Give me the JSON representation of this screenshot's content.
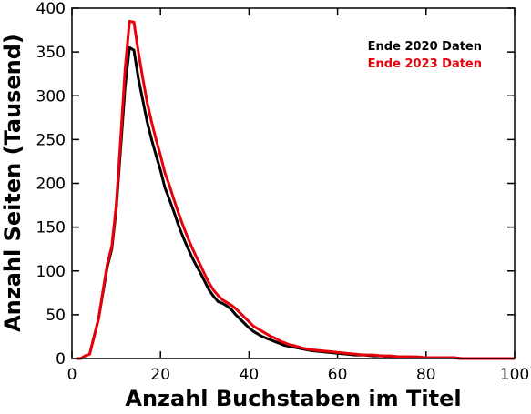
{
  "chart_data": {
    "type": "line",
    "xlabel": "Anzahl Buchstaben im Titel",
    "ylabel": "Anzahl Seiten (Tausend)",
    "x": [
      1,
      2,
      3,
      4,
      5,
      6,
      7,
      8,
      9,
      10,
      11,
      12,
      13,
      14,
      15,
      16,
      17,
      18,
      19,
      20,
      21,
      22,
      23,
      24,
      25,
      26,
      27,
      28,
      29,
      30,
      31,
      32,
      33,
      34,
      35,
      36,
      37,
      38,
      39,
      40,
      41,
      42,
      43,
      44,
      45,
      46,
      47,
      48,
      49,
      50,
      52,
      54,
      56,
      58,
      60,
      62,
      64,
      66,
      68,
      70,
      72,
      74,
      76,
      78,
      80,
      82,
      84,
      86,
      88,
      90,
      92,
      94,
      96,
      98,
      100
    ],
    "series": [
      {
        "name": "Ende 2020 Daten",
        "color": "#000000",
        "values": [
          0,
          0,
          3,
          5,
          25,
          45,
          75,
          105,
          125,
          170,
          240,
          310,
          355,
          352,
          320,
          295,
          270,
          250,
          232,
          215,
          195,
          182,
          168,
          153,
          140,
          128,
          117,
          107,
          98,
          88,
          78,
          71,
          65,
          63,
          60,
          56,
          50,
          45,
          40,
          35,
          31,
          28,
          25,
          23,
          21,
          19,
          17,
          15,
          14,
          13,
          11,
          9,
          8,
          7,
          6,
          5,
          4,
          4,
          3,
          3,
          2,
          2,
          2,
          1,
          1,
          1,
          1,
          1,
          0,
          0,
          0,
          0,
          0,
          0,
          0
        ]
      },
      {
        "name": "Ende 2023 Daten",
        "color": "#e8000b",
        "values": [
          0,
          0,
          3,
          5,
          25,
          45,
          77,
          108,
          128,
          175,
          250,
          330,
          385,
          384,
          350,
          320,
          292,
          270,
          250,
          232,
          212,
          198,
          182,
          167,
          153,
          140,
          128,
          117,
          107,
          96,
          86,
          78,
          72,
          67,
          64,
          61,
          57,
          52,
          47,
          42,
          37,
          34,
          31,
          28,
          25,
          23,
          20,
          18,
          16,
          15,
          12,
          10,
          9,
          8,
          7,
          6,
          5,
          4,
          4,
          3,
          3,
          2,
          2,
          2,
          1,
          1,
          1,
          1,
          0,
          0,
          0,
          0,
          0,
          0,
          0
        ]
      }
    ],
    "xlim": [
      0,
      100
    ],
    "xticks": [
      0,
      20,
      40,
      60,
      80,
      100
    ],
    "ylim": [
      0,
      400
    ],
    "yticks": [
      0,
      50,
      100,
      150,
      200,
      250,
      300,
      350,
      400
    ],
    "legend": "upper right"
  }
}
